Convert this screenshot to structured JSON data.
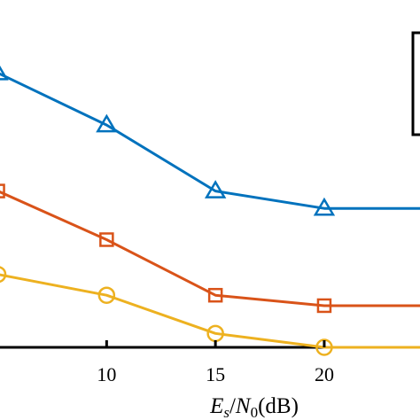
{
  "chart_data": {
    "type": "line",
    "title": "",
    "xlabel_parts": {
      "var1": "E",
      "sub1": "s",
      "slash": "/",
      "var2": "N",
      "sub2": "0",
      "unit": "(dB)"
    },
    "ylabel": "",
    "x": [
      5,
      10,
      15,
      20,
      25
    ],
    "xlim": [
      5.1,
      24.4
    ],
    "ylim": [
      0,
      1
    ],
    "xticks": [
      10,
      15,
      20
    ],
    "grid": false,
    "legend": "top-right (partially visible box, entries cut off)",
    "series": [
      {
        "marker": "triangle",
        "color": "#0072BD",
        "values": [
          0.79,
          0.64,
          0.45,
          0.4,
          0.4
        ]
      },
      {
        "marker": "square",
        "color": "#D95319",
        "values": [
          0.45,
          0.31,
          0.15,
          0.12,
          0.12
        ]
      },
      {
        "marker": "circle",
        "color": "#EDB120",
        "values": [
          0.21,
          0.15,
          0.04,
          0.0,
          0.0
        ]
      }
    ]
  }
}
